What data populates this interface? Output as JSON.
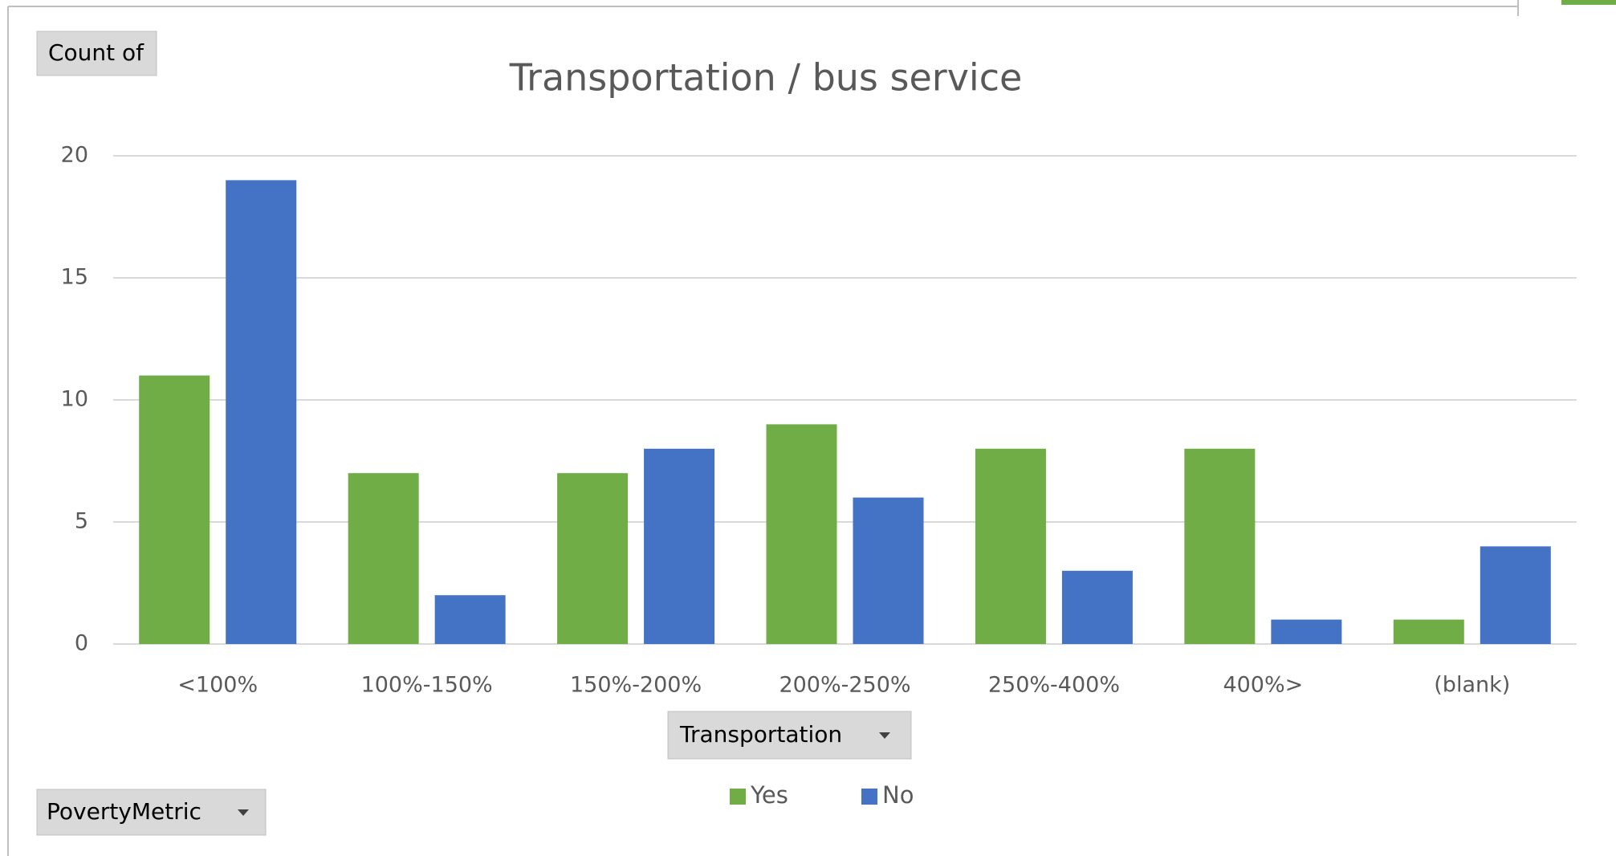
{
  "chart_data": {
    "type": "bar",
    "title": "Transportation / bus service",
    "value_field": "Count of",
    "legend_field": "Transportation",
    "axis_field": "PovertyMetric",
    "categories": [
      "<100%",
      "100%-150%",
      "150%-200%",
      "200%-250%",
      "250%-400%",
      "400%>",
      "(blank)"
    ],
    "series": [
      {
        "name": "Yes",
        "color": "#70ad47",
        "values": [
          11,
          7,
          7,
          9,
          8,
          8,
          1
        ]
      },
      {
        "name": "No",
        "color": "#4472c4",
        "values": [
          19,
          2,
          8,
          6,
          3,
          1,
          4
        ]
      }
    ],
    "ylim": [
      0,
      20
    ],
    "yticks": [
      0,
      5,
      10,
      15,
      20
    ],
    "grid": true
  }
}
